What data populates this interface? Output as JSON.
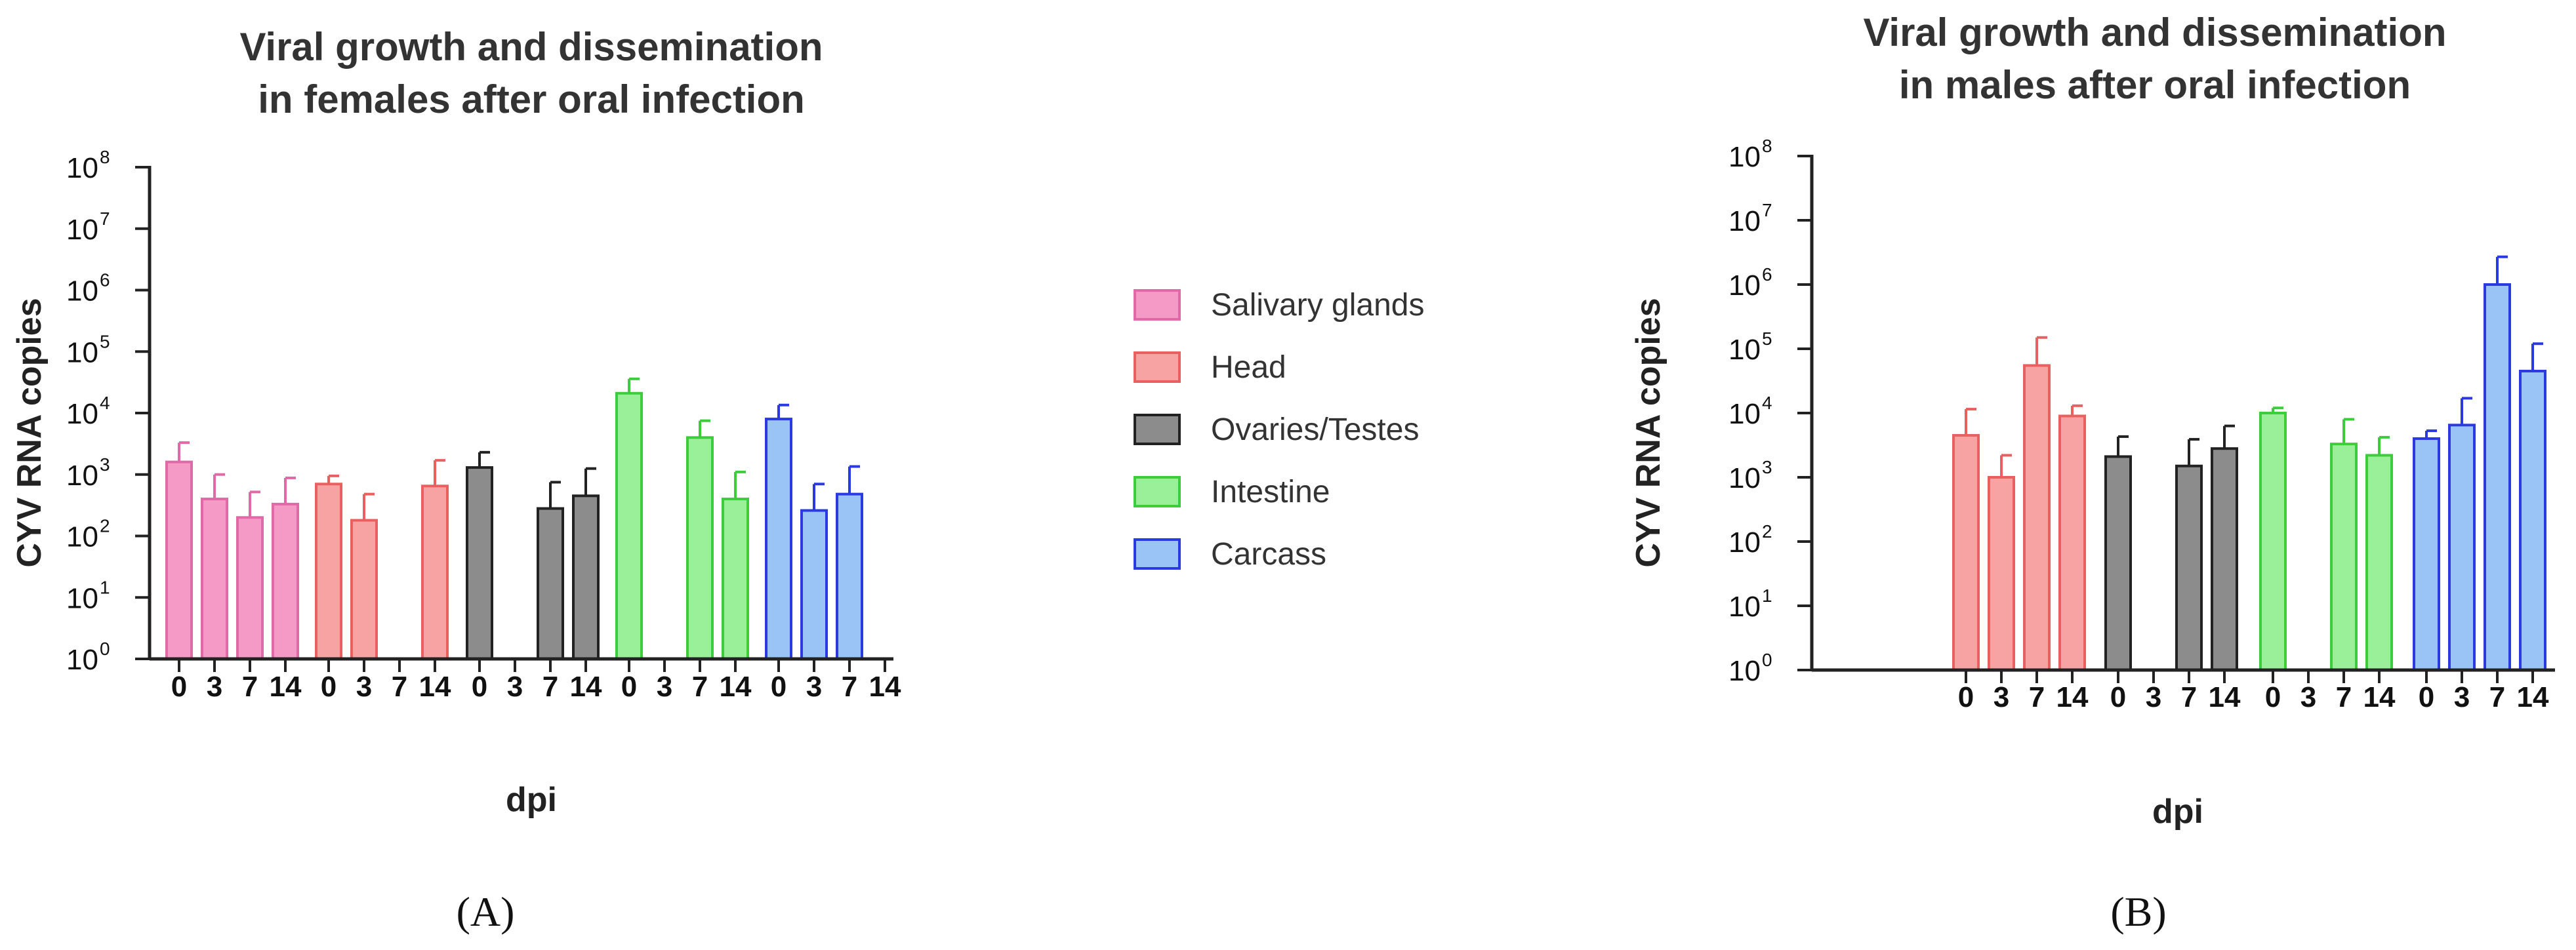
{
  "chart_data": [
    {
      "type": "bar",
      "panel_label": "(A)",
      "title_lines": [
        "Viral growth and dissemination",
        "in females after oral infection"
      ],
      "xlabel": "dpi",
      "ylabel": "CYV RNA copies",
      "yscale": "log10",
      "ylim": [
        1,
        100000000
      ],
      "y_tick_labels": [
        "10",
        "10",
        "10",
        "10",
        "10",
        "10",
        "10",
        "10",
        "10"
      ],
      "y_tick_exponents": [
        "0",
        "1",
        "2",
        "3",
        "4",
        "5",
        "6",
        "7",
        "8"
      ],
      "x_tick_labels": [
        "0",
        "3",
        "7",
        "14"
      ],
      "series": [
        {
          "name": "Salivary glands",
          "values": [
            1600,
            400,
            200,
            330
          ],
          "errors": [
            3300,
            1000,
            520,
            880
          ]
        },
        {
          "name": "Head",
          "values": [
            700,
            180,
            null,
            650
          ],
          "errors": [
            950,
            480,
            null,
            1700
          ]
        },
        {
          "name": "Ovaries/Testes",
          "values": [
            1300,
            null,
            280,
            450
          ],
          "errors": [
            2300,
            null,
            750,
            1250
          ]
        },
        {
          "name": "Intestine",
          "values": [
            21000,
            null,
            4000,
            400
          ],
          "errors": [
            36000,
            null,
            7500,
            1100
          ]
        },
        {
          "name": "Carcass",
          "values": [
            8000,
            260,
            480,
            null
          ],
          "errors": [
            13500,
            700,
            1350,
            null
          ]
        }
      ]
    },
    {
      "type": "bar",
      "panel_label": "(B)",
      "title_lines": [
        "Viral growth and dissemination",
        "in males after oral infection"
      ],
      "xlabel": "dpi",
      "ylabel": "CYV RNA copies",
      "yscale": "log10",
      "ylim": [
        1,
        100000000
      ],
      "y_tick_labels": [
        "10",
        "10",
        "10",
        "10",
        "10",
        "10",
        "10",
        "10",
        "10"
      ],
      "y_tick_exponents": [
        "0",
        "1",
        "2",
        "3",
        "4",
        "5",
        "6",
        "7",
        "8"
      ],
      "x_tick_labels": [
        "0",
        "3",
        "7",
        "14"
      ],
      "series": [
        {
          "name": "Head",
          "values": [
            4500,
            1000,
            55000,
            9000
          ],
          "errors": [
            11500,
            2200,
            150000,
            13000
          ]
        },
        {
          "name": "Ovaries/Testes",
          "values": [
            2100,
            null,
            1500,
            2800
          ],
          "errors": [
            4300,
            null,
            3900,
            6300
          ]
        },
        {
          "name": "Intestine",
          "values": [
            10000,
            null,
            3300,
            2200
          ],
          "errors": [
            12000,
            null,
            8000,
            4200
          ]
        },
        {
          "name": "Carcass",
          "values": [
            4000,
            6500,
            1000000,
            45000
          ],
          "errors": [
            5300,
            17000,
            2700000,
            120000
          ]
        }
      ]
    }
  ],
  "legend": {
    "items": [
      {
        "label": "Salivary glands",
        "fill": "#f59ac6",
        "stroke": "#e06aa8"
      },
      {
        "label": "Head",
        "fill": "#f8a3a3",
        "stroke": "#e86060"
      },
      {
        "label": "Ovaries/Testes",
        "fill": "#8c8c8c",
        "stroke": "#222222"
      },
      {
        "label": "Intestine",
        "fill": "#99f099",
        "stroke": "#3ccc3c"
      },
      {
        "label": "Carcass",
        "fill": "#99c4f5",
        "stroke": "#2a3ae0"
      }
    ]
  }
}
